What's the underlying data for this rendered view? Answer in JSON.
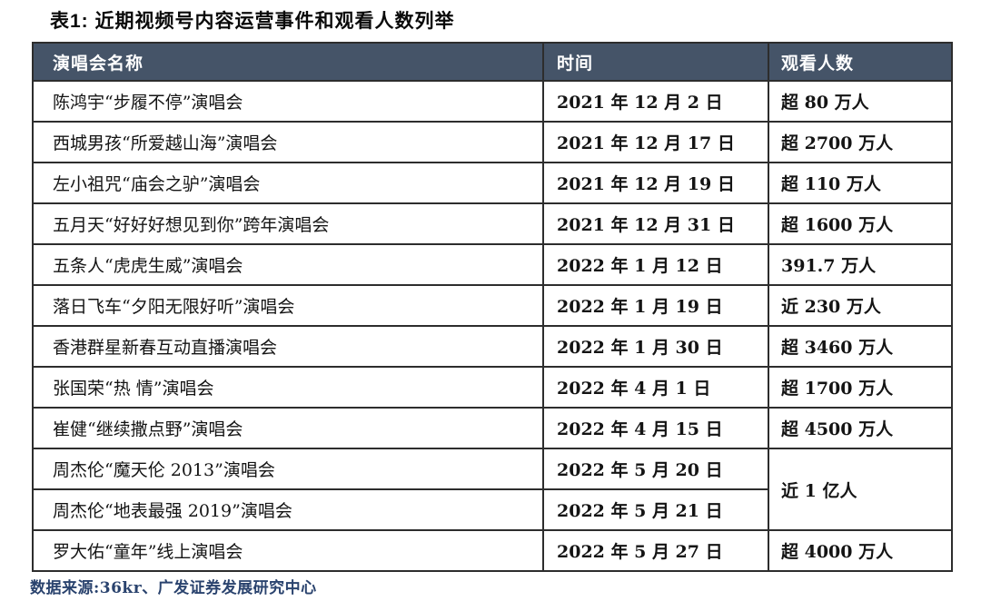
{
  "title": "表1: 近期视频号内容运营事件和观看人数列举",
  "colors": {
    "header_bg": "#455468",
    "header_text": "#ffffff",
    "border": "#2d2d2d",
    "body_text": "#141414",
    "source_text": "#2a436e",
    "page_bg": "#ffffff"
  },
  "table": {
    "headers": [
      "演唱会名称",
      "时间",
      "观看人数"
    ],
    "rows": [
      {
        "name": "陈鸿宇“步履不停”演唱会",
        "date": "2021 年 12 月 2 日",
        "viewers": "超 80 万人"
      },
      {
        "name": "西城男孩“所爱越山海”演唱会",
        "date": "2021 年 12 月 17 日",
        "viewers": "超 2700 万人"
      },
      {
        "name": "左小祖咒“庙会之驴”演唱会",
        "date": "2021 年 12 月 19 日",
        "viewers": "超 110 万人"
      },
      {
        "name": "五月天“好好好想见到你”跨年演唱会",
        "date": "2021 年 12 月 31 日",
        "viewers": "超 1600 万人"
      },
      {
        "name": "五条人“虎虎生威”演唱会",
        "date": "2022 年 1 月 12 日",
        "viewers": "391.7 万人"
      },
      {
        "name": "落日飞车“夕阳无限好听”演唱会",
        "date": "2022 年 1 月 19 日",
        "viewers": "近 230 万人"
      },
      {
        "name": "香港群星新春互动直播演唱会",
        "date": "2022 年 1 月 30 日",
        "viewers": "超 3460 万人"
      },
      {
        "name": "张国荣“热 情”演唱会",
        "date": "2022 年 4 月 1 日",
        "viewers": "超 1700 万人"
      },
      {
        "name": "崔健“继续撒点野”演唱会",
        "date": "2022 年 4 月 15 日",
        "viewers": "超 4500 万人"
      },
      {
        "name": "周杰伦“魔天伦 2013”演唱会",
        "date": "2022 年 5 月 20 日",
        "viewers": "近 1 亿人",
        "viewers_rowspan": 2
      },
      {
        "name": "周杰伦“地表最强 2019”演唱会",
        "date": "2022 年 5 月 21 日",
        "viewers": null
      },
      {
        "name": "罗大佑“童年”线上演唱会",
        "date": "2022 年 5 月 27 日",
        "viewers": "超 4000 万人"
      }
    ]
  },
  "source": "数据来源:36kr、广发证券发展研究中心"
}
